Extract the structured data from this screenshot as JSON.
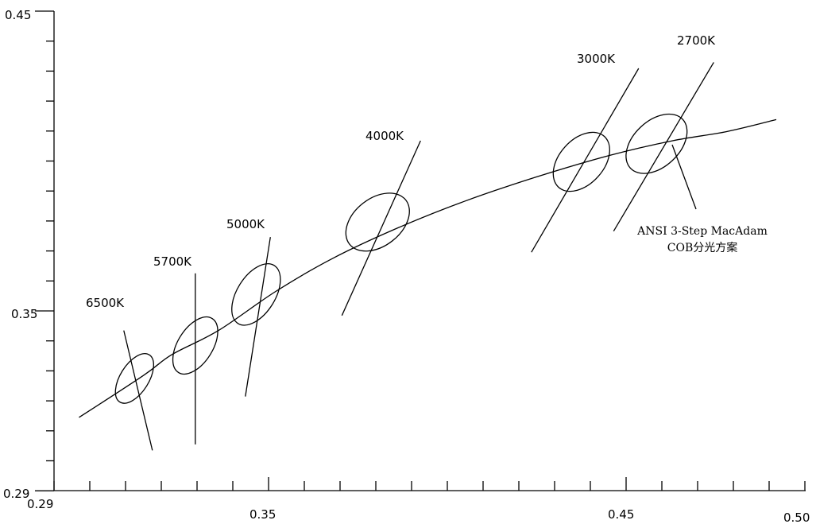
{
  "chart_data": {
    "type": "scatter",
    "title": "",
    "xlabel": "",
    "ylabel": "",
    "xlim": [
      0.29,
      0.5
    ],
    "ylim": [
      0.29,
      0.45
    ],
    "x_tick_labels": [
      "0.29",
      "0.35",
      "0.45",
      "0.50"
    ],
    "y_tick_labels": [
      "0.45",
      "0.35",
      "0.29"
    ],
    "grid": false,
    "planckian_locus": {
      "x": [
        0.297,
        0.315,
        0.323,
        0.336,
        0.352,
        0.368,
        0.386,
        0.405,
        0.425,
        0.445,
        0.463,
        0.478,
        0.492
      ],
      "y": [
        0.315,
        0.329,
        0.336,
        0.344,
        0.357,
        0.368,
        0.378,
        0.387,
        0.395,
        0.402,
        0.407,
        0.41,
        0.414
      ]
    },
    "series": [
      {
        "name": "6500K",
        "center_x": 0.3125,
        "center_y": 0.328,
        "isotherm": {
          "x": [
            0.3095,
            0.3175
          ],
          "y": [
            0.344,
            0.304
          ]
        }
      },
      {
        "name": "5700K",
        "center_x": 0.3295,
        "center_y": 0.339,
        "isotherm": {
          "x": [
            0.3295,
            0.3295
          ],
          "y": [
            0.363,
            0.306
          ]
        }
      },
      {
        "name": "5000K",
        "center_x": 0.3465,
        "center_y": 0.356,
        "isotherm": {
          "x": [
            0.3505,
            0.3435
          ],
          "y": [
            0.375,
            0.322
          ]
        }
      },
      {
        "name": "4000K",
        "center_x": 0.3805,
        "center_y": 0.38,
        "isotherm": {
          "x": [
            0.3925,
            0.3705
          ],
          "y": [
            0.407,
            0.349
          ]
        }
      },
      {
        "name": "3000K",
        "center_x": 0.4375,
        "center_y": 0.4,
        "isotherm": {
          "x": [
            0.4535,
            0.4235
          ],
          "y": [
            0.431,
            0.37
          ]
        }
      },
      {
        "name": "2700K",
        "center_x": 0.4585,
        "center_y": 0.406,
        "isotherm": {
          "x": [
            0.4745,
            0.4465
          ],
          "y": [
            0.433,
            0.377
          ]
        }
      }
    ],
    "annotation": {
      "line1": "ANSI 3-Step MacAdam",
      "line2": "COB分光方案"
    }
  }
}
